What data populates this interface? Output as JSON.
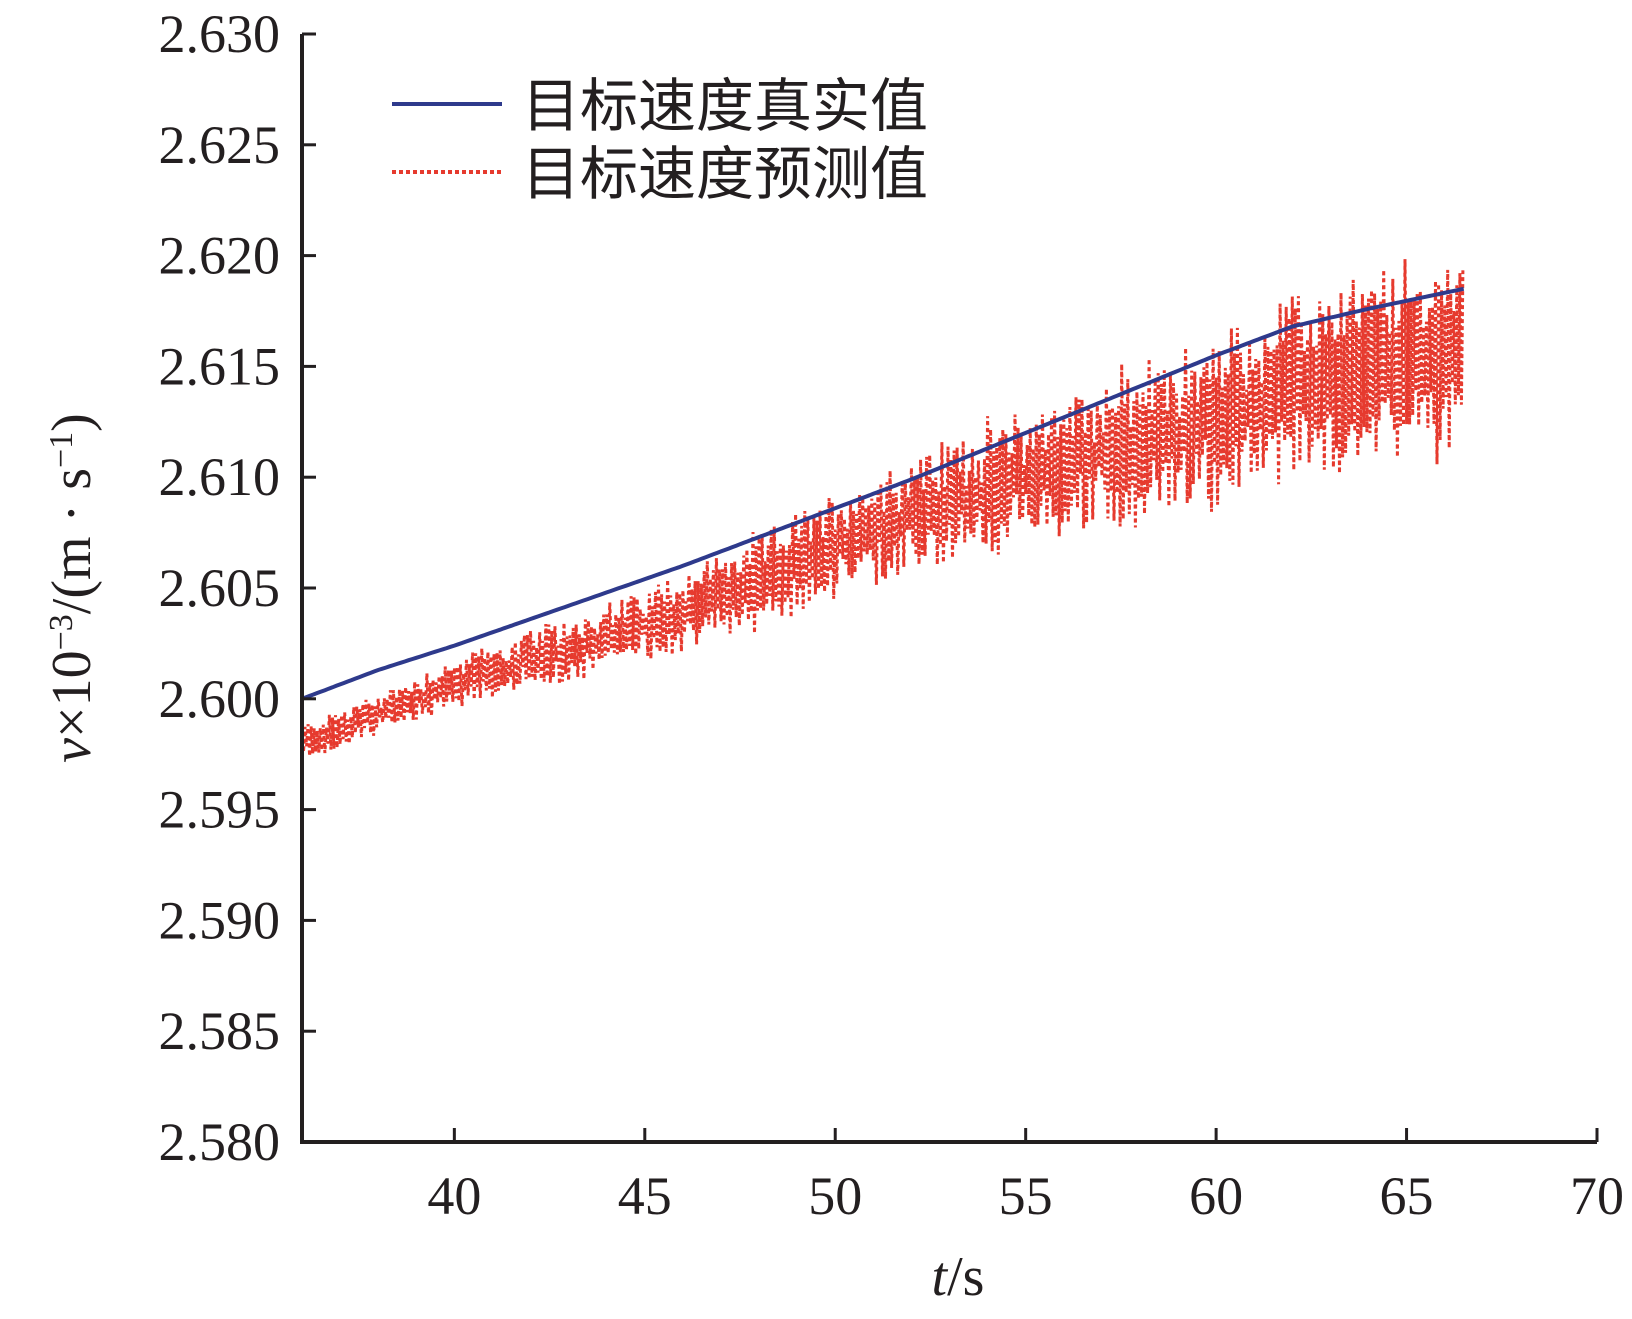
{
  "chart_data": {
    "type": "line",
    "xlabel": {
      "var": "t",
      "unit": "/s"
    },
    "ylabel": {
      "var": "v",
      "mult": "×10",
      "exp1": "−3",
      "unit_open": "/(m · s",
      "exp2": "−1",
      "unit_close": ")"
    },
    "xlim": [
      36,
      70
    ],
    "ylim": [
      2.58,
      2.63
    ],
    "x_ticks": [
      40,
      45,
      50,
      55,
      60,
      65,
      70
    ],
    "y_ticks": [
      2.58,
      2.585,
      2.59,
      2.595,
      2.6,
      2.605,
      2.61,
      2.615,
      2.62,
      2.625,
      2.63
    ],
    "x_tick_labels": [
      "40",
      "45",
      "50",
      "55",
      "60",
      "65",
      "70"
    ],
    "y_tick_labels": [
      "2.580",
      "2.585",
      "2.590",
      "2.595",
      "2.600",
      "2.605",
      "2.610",
      "2.615",
      "2.620",
      "2.625",
      "2.630"
    ],
    "grid": false,
    "legend_position": "top-left",
    "series": [
      {
        "name": "目标速度真实值",
        "style": "solid",
        "color": "#2e3a8c",
        "x": [
          36,
          38,
          40,
          42,
          44,
          46,
          48,
          50,
          52,
          54,
          56,
          58,
          60,
          62,
          64,
          66.5
        ],
        "y": [
          2.6,
          2.6013,
          2.6024,
          2.6036,
          2.6048,
          2.606,
          2.6073,
          2.6086,
          2.6099,
          2.6113,
          2.6127,
          2.6141,
          2.6155,
          2.6168,
          2.6176,
          2.6185
        ]
      },
      {
        "name": "目标速度预测值",
        "style": "dotted",
        "color": "#e63a2e",
        "start_drop": 2.58,
        "x": [
          36,
          38,
          40,
          42,
          44,
          46,
          48,
          50,
          52,
          54,
          56,
          58,
          60,
          62,
          64,
          66.5
        ],
        "center": [
          2.598,
          2.5993,
          2.6007,
          2.6017,
          2.6027,
          2.604,
          2.6053,
          2.607,
          2.6083,
          2.6095,
          2.6105,
          2.6115,
          2.6125,
          2.614,
          2.615,
          2.6157
        ],
        "spread": [
          0.0008,
          0.0009,
          0.0011,
          0.0013,
          0.0015,
          0.0017,
          0.002,
          0.0022,
          0.0025,
          0.0028,
          0.0031,
          0.0034,
          0.0036,
          0.0038,
          0.004,
          0.0042
        ],
        "sample_step": 0.04
      }
    ]
  }
}
